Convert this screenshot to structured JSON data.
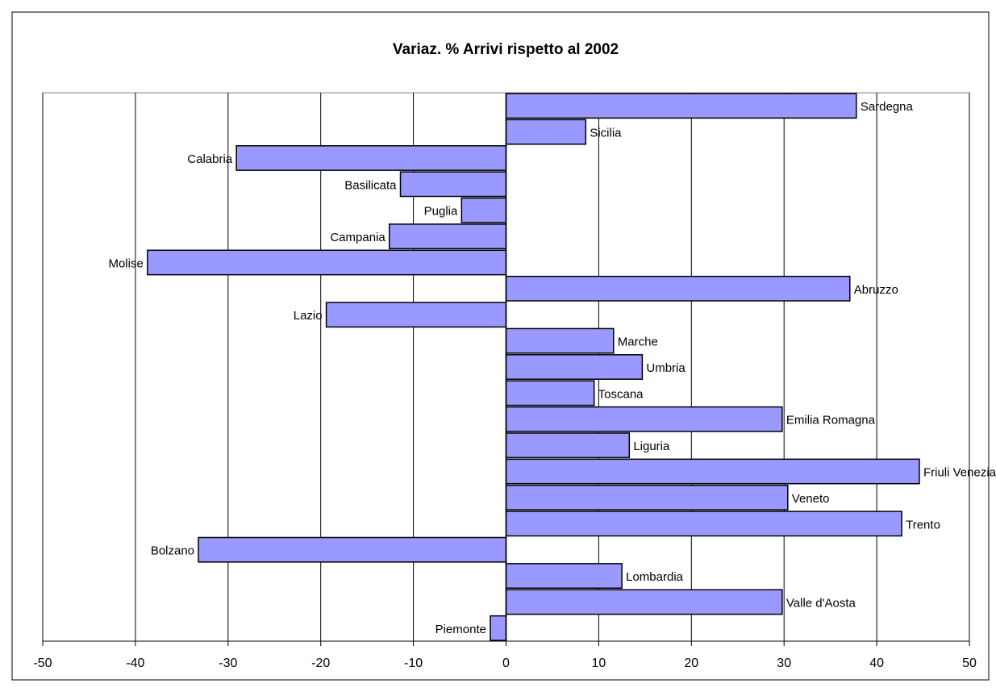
{
  "chart_data": {
    "type": "bar",
    "orientation": "horizontal",
    "title": "Variaz. % Arrivi rispetto al 2002",
    "categories": [
      "Sardegna",
      "Sicilia",
      "Calabria",
      "Basilicata",
      "Puglia",
      "Campania",
      "Molise",
      "Abruzzo",
      "Lazio",
      "Marche",
      "Umbria",
      "Toscana",
      "Emilia Romagna",
      "Liguria",
      "Friuli Venezia Giulia",
      "Veneto",
      "Trento",
      "Bolzano",
      "Lombardia",
      "Valle d'Aosta",
      "Piemonte"
    ],
    "values": [
      37.8,
      8.6,
      -29.1,
      -11.4,
      -4.8,
      -12.6,
      -38.7,
      37.1,
      -19.4,
      11.6,
      14.7,
      9.5,
      29.8,
      13.3,
      44.6,
      30.4,
      42.7,
      -33.2,
      12.5,
      29.8,
      -1.7
    ],
    "color": "#9999ff",
    "xlim": [
      -50,
      50
    ],
    "xticks": [
      -50,
      -40,
      -30,
      -20,
      -10,
      0,
      10,
      20,
      30,
      40,
      50
    ],
    "grid": true
  }
}
